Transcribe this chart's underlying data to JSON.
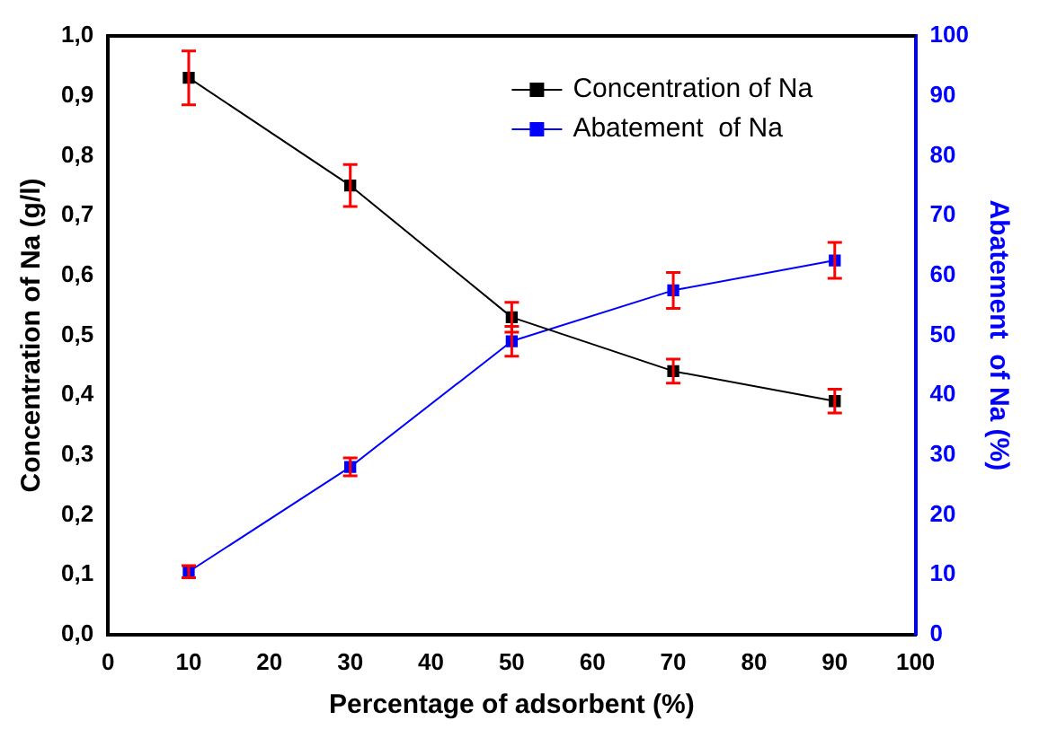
{
  "chart_data": {
    "type": "line",
    "xlabel": "Percentage of adsorbent (%)",
    "ylabel": "Concentration of Na (g/l)",
    "y2label": "Abatement  of Na (%)",
    "x": [
      10,
      30,
      50,
      70,
      90
    ],
    "series": [
      {
        "name": "Concentration of Na",
        "color": "#000000",
        "values": [
          0.93,
          0.75,
          0.53,
          0.44,
          0.39
        ],
        "errors": [
          0.045,
          0.035,
          0.025,
          0.02,
          0.02
        ]
      },
      {
        "name": "Abatement  of Na",
        "color": "#0000ff",
        "axis": "y2",
        "values": [
          10.5,
          28,
          49,
          57.5,
          62.5
        ],
        "errors": [
          1,
          1.5,
          2.5,
          3,
          3
        ]
      }
    ],
    "xlim": [
      0,
      100
    ],
    "xticks": [
      0,
      10,
      20,
      30,
      40,
      50,
      60,
      70,
      80,
      90,
      100
    ],
    "ylim": [
      0,
      1
    ],
    "yticks": [
      {
        "value": 0,
        "label": "0,0"
      },
      {
        "value": 0.1,
        "label": "0,1"
      },
      {
        "value": 0.2,
        "label": "0,2"
      },
      {
        "value": 0.3,
        "label": "0,3"
      },
      {
        "value": 0.4,
        "label": "0,4"
      },
      {
        "value": 0.5,
        "label": "0,5"
      },
      {
        "value": 0.6,
        "label": "0,6"
      },
      {
        "value": 0.7,
        "label": "0,7"
      },
      {
        "value": 0.8,
        "label": "0,8"
      },
      {
        "value": 0.9,
        "label": "0,9"
      },
      {
        "value": 1,
        "label": "1,0"
      }
    ],
    "y2lim": [
      0,
      100
    ],
    "y2ticks": [
      0,
      10,
      20,
      30,
      40,
      50,
      60,
      70,
      80,
      90,
      100
    ],
    "grid": false,
    "legend": "top right",
    "marker": "square",
    "line_style": "solid"
  }
}
